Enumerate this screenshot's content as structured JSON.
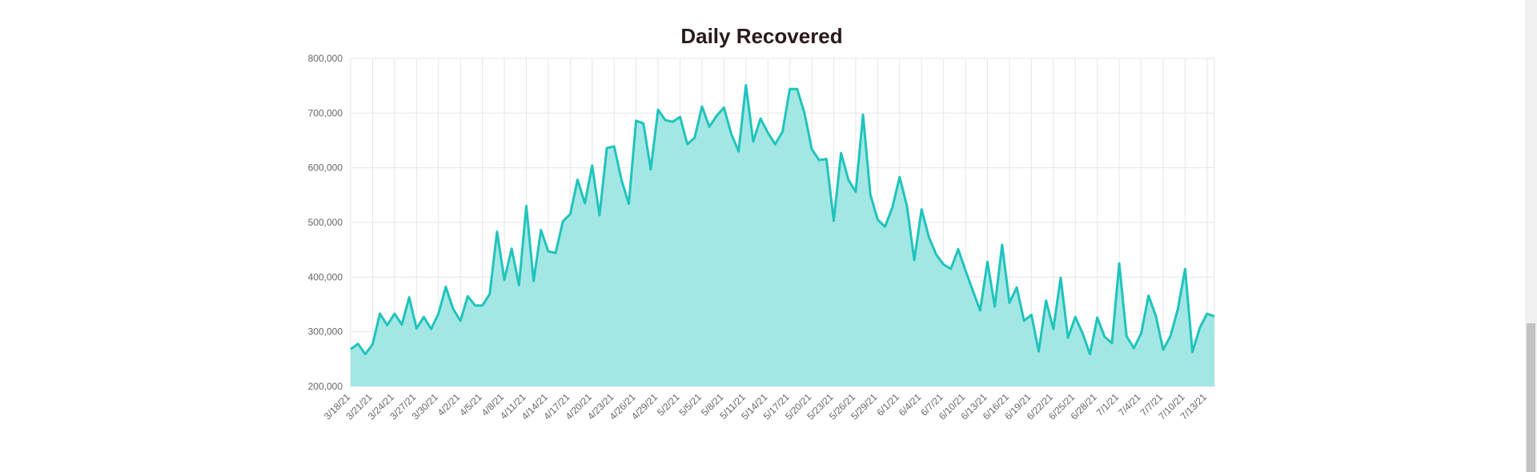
{
  "colors": {
    "line": "#1fc4bc",
    "fill": "#a3e7e4",
    "grid": "#e6e6e6",
    "axis_text": "#666666",
    "title": "#2a1a1a"
  },
  "chart_data": {
    "type": "area",
    "title": "Daily Recovered",
    "xlabel": "",
    "ylabel": "",
    "ylim": [
      200000,
      800000
    ],
    "grid": true,
    "legend": "none",
    "y_ticks": [
      "200,000",
      "300,000",
      "400,000",
      "500,000",
      "600,000",
      "700,000",
      "800,000"
    ],
    "x_tick_labels": [
      "3/18/21",
      "3/21/21",
      "3/24/21",
      "3/27/21",
      "3/30/21",
      "4/2/21",
      "4/5/21",
      "4/8/21",
      "4/11/21",
      "4/14/21",
      "4/17/21",
      "4/20/21",
      "4/23/21",
      "4/26/21",
      "4/29/21",
      "5/2/21",
      "5/5/21",
      "5/8/21",
      "5/11/21",
      "5/14/21",
      "5/17/21",
      "5/20/21",
      "5/23/21",
      "5/26/21",
      "5/29/21",
      "6/1/21",
      "6/4/21",
      "6/7/21",
      "6/10/21",
      "6/13/21",
      "6/16/21",
      "6/19/21",
      "6/22/21",
      "6/25/21",
      "6/28/21",
      "7/1/21",
      "7/4/21",
      "7/7/21",
      "7/10/21",
      "7/13/21"
    ],
    "x_start": "3/18/21",
    "x_end": "7/14/21",
    "values": [
      268000,
      278000,
      259000,
      277000,
      333000,
      312000,
      333000,
      313000,
      363000,
      306000,
      327000,
      305000,
      333000,
      382000,
      342000,
      320000,
      365000,
      348000,
      348000,
      369000,
      483000,
      395000,
      452000,
      385000,
      530000,
      393000,
      486000,
      447000,
      444000,
      502000,
      515000,
      578000,
      535000,
      604000,
      513000,
      636000,
      639000,
      578000,
      534000,
      686000,
      681000,
      597000,
      706000,
      687000,
      684000,
      693000,
      643000,
      655000,
      712000,
      675000,
      695000,
      710000,
      662000,
      630000,
      751000,
      648000,
      690000,
      664000,
      643000,
      666000,
      744000,
      744000,
      700000,
      634000,
      614000,
      616000,
      503000,
      627000,
      578000,
      556000,
      697000,
      551000,
      505000,
      492000,
      527000,
      583000,
      530000,
      431000,
      524000,
      473000,
      441000,
      423000,
      415000,
      451000,
      412000,
      375000,
      339000,
      428000,
      346000,
      459000,
      353000,
      381000,
      320000,
      331000,
      264000,
      357000,
      305000,
      399000,
      289000,
      327000,
      297000,
      259000,
      326000,
      291000,
      279000,
      425000,
      292000,
      270000,
      297000,
      366000,
      329000,
      267000,
      292000,
      341000,
      415000,
      263000,
      307000,
      333000,
      328000
    ]
  }
}
